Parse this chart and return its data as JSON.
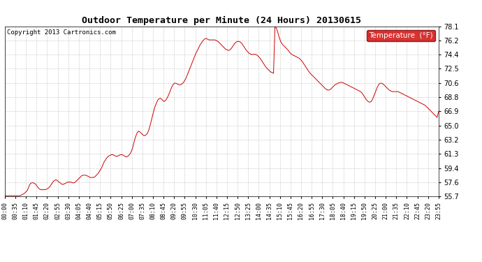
{
  "title": "Outdoor Temperature per Minute (24 Hours) 20130615",
  "copyright": "Copyright 2013 Cartronics.com",
  "legend_label": "Temperature  (°F)",
  "line_color": "#cc0000",
  "background_color": "#ffffff",
  "grid_color": "#aaaaaa",
  "legend_bg": "#cc0000",
  "legend_text_color": "#ffffff",
  "ylim": [
    55.7,
    78.1
  ],
  "yticks": [
    55.7,
    57.6,
    59.4,
    61.3,
    63.2,
    65.0,
    66.9,
    68.8,
    70.6,
    72.5,
    74.4,
    76.2,
    78.1
  ],
  "xtick_labels": [
    "00:00",
    "00:35",
    "01:10",
    "01:45",
    "02:20",
    "02:55",
    "03:30",
    "04:05",
    "04:40",
    "05:15",
    "05:50",
    "06:25",
    "07:00",
    "07:35",
    "08:10",
    "08:45",
    "09:20",
    "09:55",
    "10:30",
    "11:05",
    "11:40",
    "12:15",
    "12:50",
    "13:25",
    "14:00",
    "14:35",
    "15:10",
    "15:45",
    "16:20",
    "16:55",
    "17:30",
    "18:05",
    "18:40",
    "19:15",
    "19:50",
    "20:25",
    "21:00",
    "21:35",
    "22:10",
    "22:45",
    "23:20",
    "23:55"
  ],
  "temperature_profile": [
    55.8,
    55.8,
    55.8,
    55.8,
    55.8,
    55.8,
    55.8,
    55.8,
    55.8,
    55.8,
    55.8,
    55.9,
    56.0,
    56.1,
    56.3,
    56.5,
    57.0,
    57.4,
    57.5,
    57.5,
    57.4,
    57.2,
    56.9,
    56.7,
    56.6,
    56.6,
    56.6,
    56.6,
    56.7,
    56.8,
    57.0,
    57.3,
    57.6,
    57.8,
    57.9,
    57.8,
    57.6,
    57.5,
    57.3,
    57.3,
    57.4,
    57.5,
    57.6,
    57.6,
    57.6,
    57.5,
    57.5,
    57.6,
    57.8,
    58.0,
    58.2,
    58.4,
    58.5,
    58.5,
    58.5,
    58.4,
    58.3,
    58.2,
    58.2,
    58.2,
    58.3,
    58.5,
    58.7,
    59.0,
    59.3,
    59.7,
    60.2,
    60.5,
    60.8,
    61.0,
    61.1,
    61.2,
    61.2,
    61.1,
    61.0,
    61.0,
    61.1,
    61.2,
    61.2,
    61.1,
    61.0,
    60.9,
    61.0,
    61.2,
    61.5,
    62.0,
    62.8,
    63.5,
    64.0,
    64.3,
    64.2,
    64.0,
    63.8,
    63.7,
    63.8,
    64.0,
    64.5,
    65.2,
    66.0,
    66.8,
    67.5,
    68.0,
    68.4,
    68.6,
    68.6,
    68.4,
    68.2,
    68.3,
    68.6,
    69.0,
    69.5,
    70.0,
    70.4,
    70.6,
    70.6,
    70.5,
    70.4,
    70.4,
    70.5,
    70.7,
    71.0,
    71.4,
    71.9,
    72.4,
    72.9,
    73.4,
    73.9,
    74.4,
    74.8,
    75.2,
    75.6,
    75.9,
    76.2,
    76.4,
    76.5,
    76.4,
    76.3,
    76.3,
    76.3,
    76.3,
    76.3,
    76.2,
    76.1,
    75.9,
    75.7,
    75.5,
    75.3,
    75.1,
    75.0,
    74.9,
    75.0,
    75.2,
    75.5,
    75.8,
    76.0,
    76.1,
    76.1,
    76.0,
    75.8,
    75.5,
    75.2,
    74.9,
    74.7,
    74.5,
    74.4,
    74.4,
    74.4,
    74.4,
    74.3,
    74.1,
    73.9,
    73.6,
    73.3,
    73.0,
    72.7,
    72.5,
    72.3,
    72.1,
    72.0,
    71.9,
    78.1,
    77.8,
    77.2,
    76.5,
    76.0,
    75.7,
    75.5,
    75.3,
    75.1,
    74.9,
    74.6,
    74.4,
    74.3,
    74.2,
    74.1,
    74.0,
    73.9,
    73.7,
    73.5,
    73.2,
    72.9,
    72.6,
    72.3,
    72.0,
    71.8,
    71.6,
    71.4,
    71.2,
    71.0,
    70.8,
    70.6,
    70.4,
    70.2,
    70.0,
    69.8,
    69.7,
    69.7,
    69.8,
    70.0,
    70.2,
    70.4,
    70.5,
    70.6,
    70.7,
    70.7,
    70.7,
    70.6,
    70.5,
    70.4,
    70.3,
    70.2,
    70.1,
    70.0,
    69.9,
    69.8,
    69.7,
    69.6,
    69.5,
    69.3,
    69.0,
    68.7,
    68.4,
    68.2,
    68.1,
    68.2,
    68.5,
    69.0,
    69.5,
    70.0,
    70.4,
    70.6,
    70.6,
    70.5,
    70.3,
    70.1,
    69.9,
    69.7,
    69.6,
    69.5,
    69.5,
    69.5,
    69.5,
    69.5,
    69.4,
    69.3,
    69.2,
    69.1,
    69.0,
    68.9,
    68.8,
    68.7,
    68.6,
    68.5,
    68.4,
    68.3,
    68.2,
    68.1,
    68.0,
    67.9,
    67.8,
    67.7,
    67.5,
    67.3,
    67.1,
    66.9,
    66.7,
    66.5,
    66.3,
    66.1,
    66.9
  ]
}
